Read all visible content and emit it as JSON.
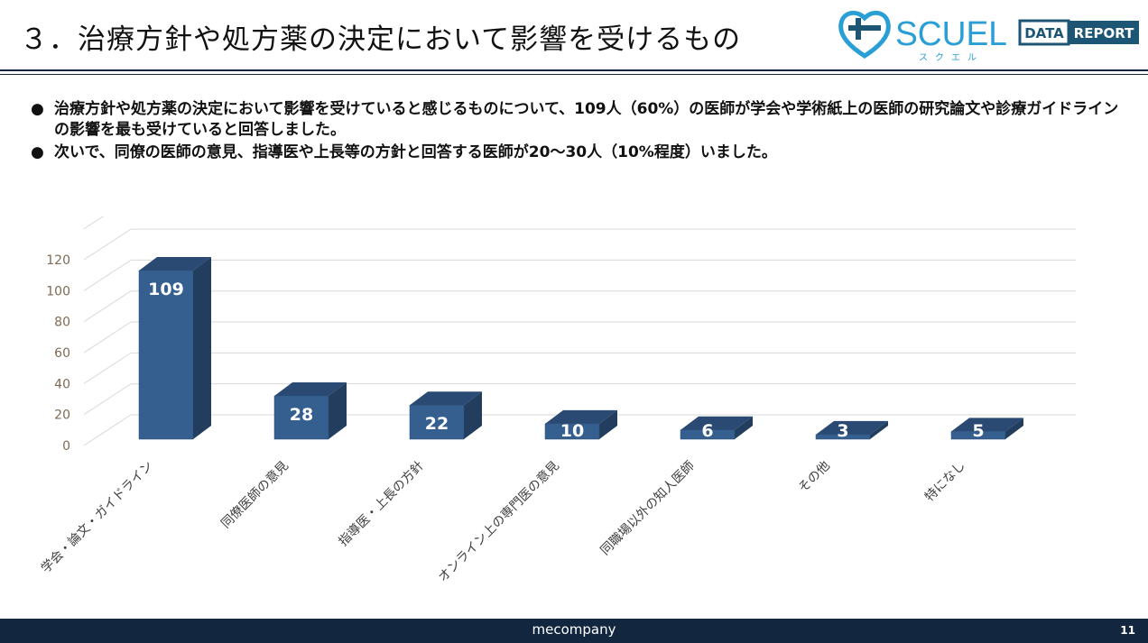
{
  "header": {
    "title": "３．治療方針や処方薬の決定において影響を受けるもの",
    "logo": {
      "name": "SCUEL",
      "kana": "スクエル",
      "badge_left": "DATA",
      "badge_right": "REPORT"
    }
  },
  "bullets": [
    "治療方針や処方薬の決定において影響を受けていると感じるものについて、109人（60%）の医師が学会や学術紙上の医師の研究論文や診療ガイドラインの影響を最も受けていると回答しました。",
    "次いで、同僚の医師の意見、指導医や上長等の方針と回答する医師が20～30人（10%程度）いました。"
  ],
  "bullet_symbol": "●",
  "chart_data": {
    "type": "bar",
    "style": "3d-column",
    "categories": [
      "学会・論文・ガイドライン",
      "同僚医師の意見",
      "指導医・上長の方針",
      "オンライン上の専門医の意見",
      "同職場以外の知人医師",
      "その他",
      "特になし"
    ],
    "values": [
      109,
      28,
      22,
      10,
      6,
      3,
      5
    ],
    "yticks": [
      0,
      20,
      40,
      60,
      80,
      100,
      120
    ],
    "ylim": [
      0,
      140
    ],
    "grid": true,
    "data_labels": true,
    "colors": {
      "front": "#355f8f",
      "side": "#223d5e",
      "top": "#2a4a73",
      "grid": "#d9d9d9",
      "tick": "#7f6a55"
    }
  },
  "footer": {
    "brand": "mecompany",
    "page": "11"
  }
}
